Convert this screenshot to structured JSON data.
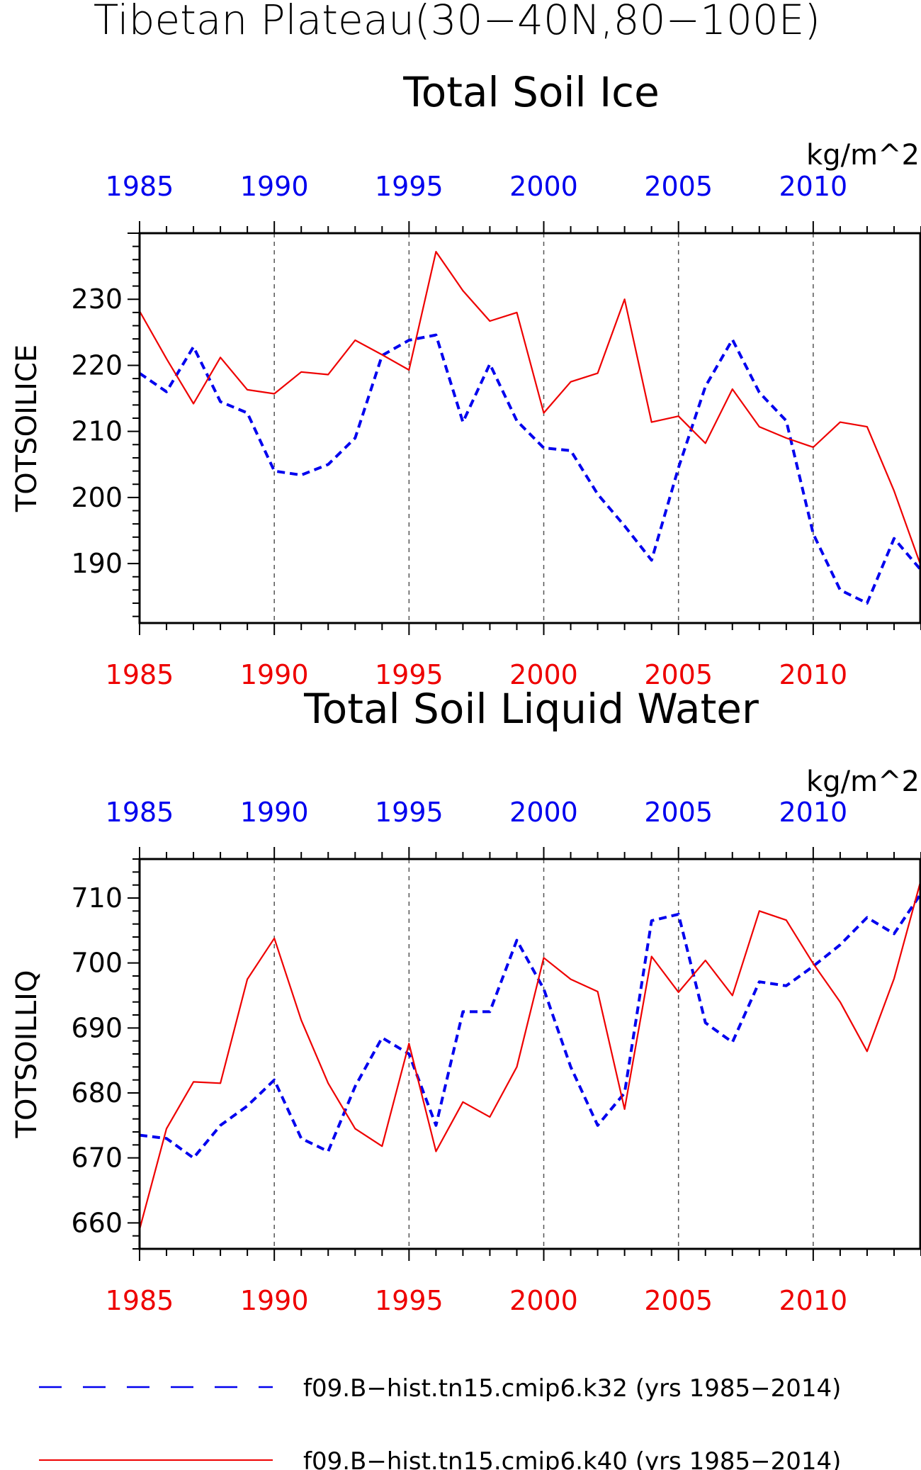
{
  "figure": {
    "title_line1": "Tibetan Plateau(30−40N,80−100E)",
    "colors": {
      "k32": "#0000ee",
      "k40": "#ee0000",
      "axis": "#000000"
    }
  },
  "legend": {
    "entries": [
      {
        "label": "f09.B−hist.tn15.cmip6.k32 (yrs 1985−2014)",
        "color": "#0000ee",
        "style": "dashed"
      },
      {
        "label": "f09.B−hist.tn15.cmip6.k40 (yrs 1985−2014)",
        "color": "#ee0000",
        "style": "solid"
      }
    ]
  },
  "chart_data": [
    {
      "type": "line",
      "title": "Total Soil Ice",
      "units": "kg/m^2",
      "ylabel": "TOTSOILICE",
      "xlim": [
        1985,
        2014
      ],
      "ylim": [
        181,
        240
      ],
      "yticks": [
        190,
        200,
        210,
        220,
        230
      ],
      "xticks_labeled": [
        1985,
        1990,
        1995,
        2000,
        2005,
        2010
      ],
      "x": [
        1985,
        1986,
        1987,
        1988,
        1989,
        1990,
        1991,
        1992,
        1993,
        1994,
        1995,
        1996,
        1997,
        1998,
        1999,
        2000,
        2001,
        2002,
        2003,
        2004,
        2005,
        2006,
        2007,
        2008,
        2009,
        2010,
        2011,
        2012,
        2013,
        2014
      ],
      "series": [
        {
          "key": "k32",
          "style": "dashed",
          "values": [
            218.8,
            216.0,
            222.8,
            214.5,
            212.8,
            204.0,
            203.4,
            205.0,
            209.0,
            221.5,
            223.8,
            224.6,
            211.4,
            220.2,
            211.6,
            207.5,
            207.1,
            200.5,
            195.7,
            190.5,
            204.5,
            216.8,
            223.9,
            215.9,
            211.6,
            194.5,
            186.0,
            184.0,
            193.8,
            189.0
          ]
        },
        {
          "key": "k40",
          "style": "solid",
          "values": [
            228.2,
            221.0,
            214.2,
            221.2,
            216.3,
            215.7,
            219.0,
            218.6,
            223.8,
            221.6,
            219.3,
            237.2,
            231.3,
            226.7,
            228.0,
            212.8,
            217.5,
            218.8,
            230.0,
            211.4,
            212.3,
            208.2,
            216.4,
            210.7,
            209.0,
            207.6,
            211.4,
            210.7,
            201.0,
            189.6
          ]
        }
      ]
    },
    {
      "type": "line",
      "title": "Total Soil Liquid Water",
      "units": "kg/m^2",
      "ylabel": "TOTSOILLIQ",
      "xlim": [
        1985,
        2014
      ],
      "ylim": [
        656,
        716
      ],
      "yticks": [
        660,
        670,
        680,
        690,
        700,
        710
      ],
      "xticks_labeled": [
        1985,
        1990,
        1995,
        2000,
        2005,
        2010
      ],
      "x": [
        1985,
        1986,
        1987,
        1988,
        1989,
        1990,
        1991,
        1992,
        1993,
        1994,
        1995,
        1996,
        1997,
        1998,
        1999,
        2000,
        2001,
        2002,
        2003,
        2004,
        2005,
        2006,
        2007,
        2008,
        2009,
        2010,
        2011,
        2012,
        2013,
        2014
      ],
      "series": [
        {
          "key": "k32",
          "style": "dashed",
          "values": [
            673.5,
            673.0,
            670.0,
            675.0,
            678.0,
            682.0,
            673.0,
            671.0,
            681.0,
            688.5,
            686.0,
            675.0,
            692.5,
            692.5,
            703.5,
            696.0,
            684.0,
            675.0,
            680.0,
            706.5,
            707.5,
            690.8,
            687.8,
            697.1,
            696.5,
            699.5,
            702.8,
            707.0,
            704.5,
            710.7
          ]
        },
        {
          "key": "k40",
          "style": "solid",
          "values": [
            659.0,
            674.5,
            681.7,
            681.5,
            697.5,
            703.8,
            691.2,
            681.5,
            674.5,
            671.8,
            687.6,
            671.0,
            678.6,
            676.3,
            684.0,
            700.8,
            697.5,
            695.6,
            677.5,
            701.0,
            695.5,
            700.4,
            695.0,
            708.0,
            706.6,
            699.9,
            694.0,
            686.4,
            697.6,
            712.8
          ]
        }
      ]
    }
  ]
}
